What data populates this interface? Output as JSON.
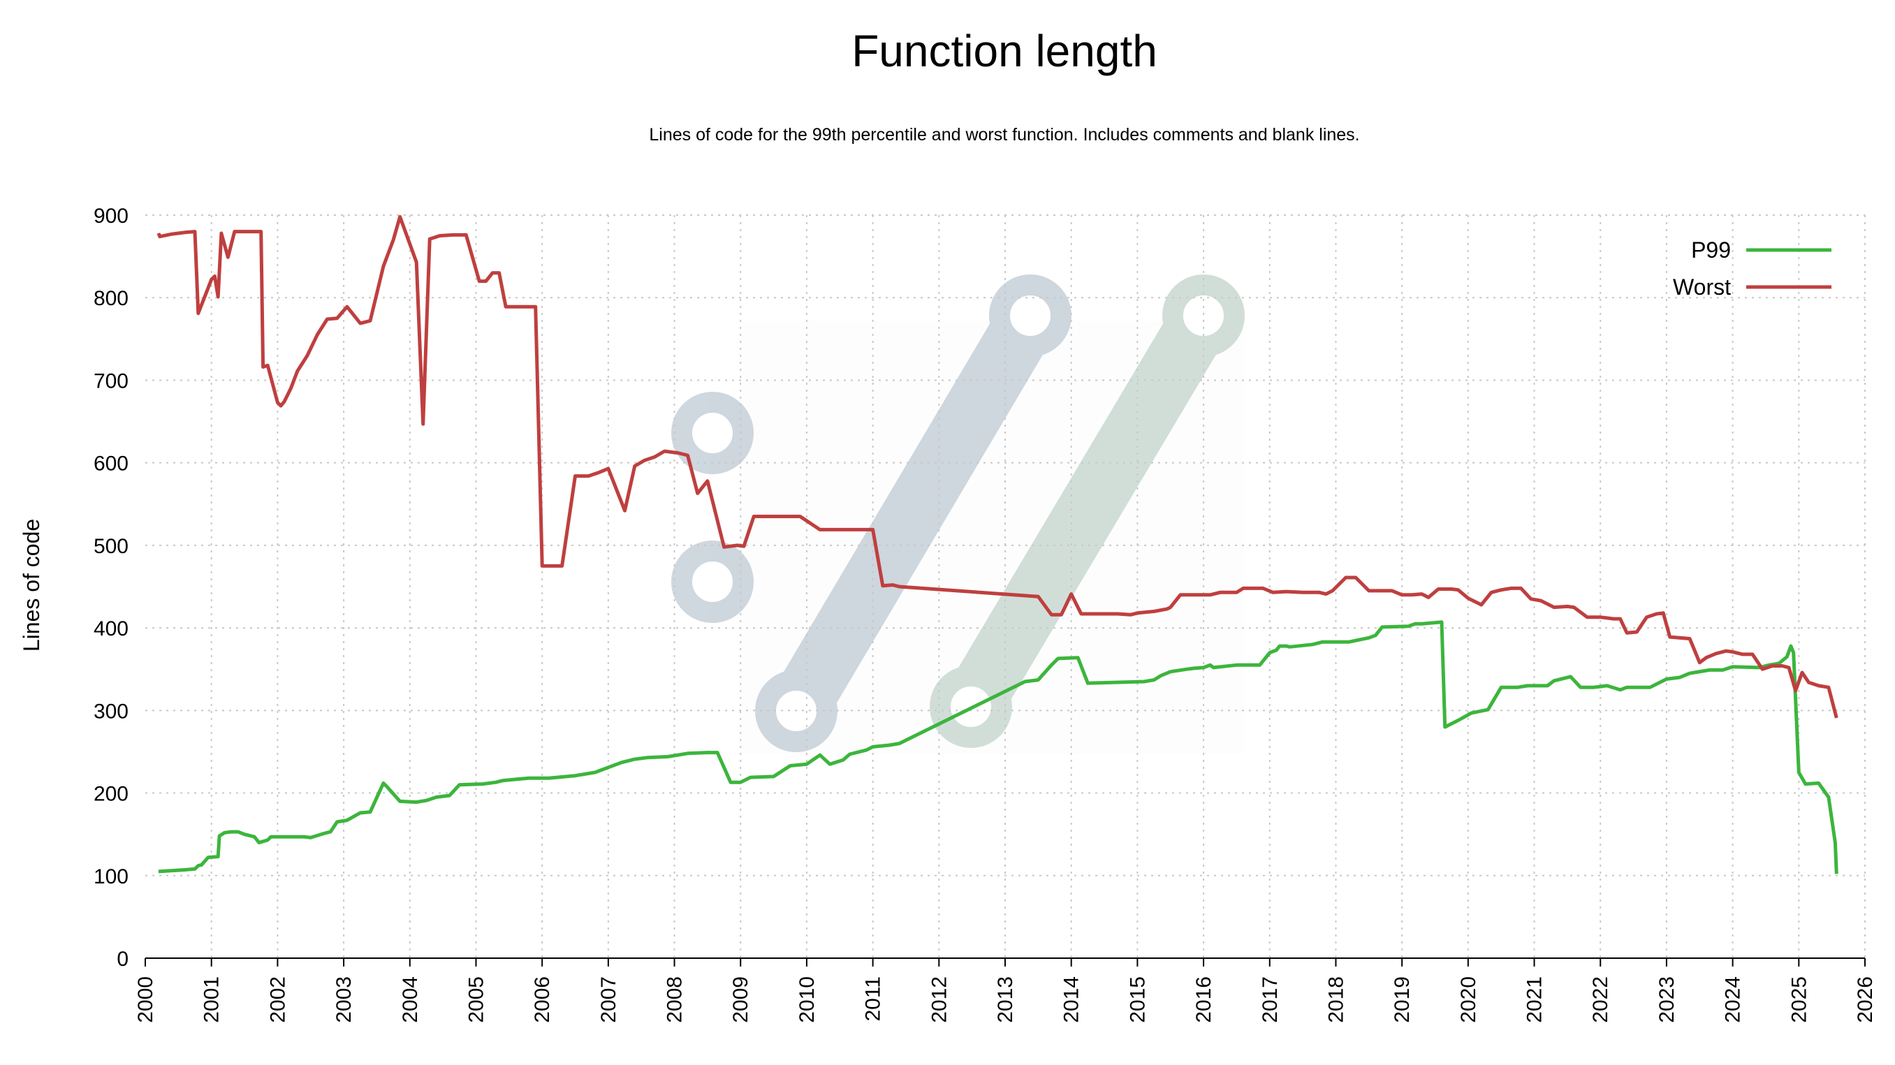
{
  "chart_data": {
    "type": "line",
    "title": "Function length",
    "subtitle": "Lines of code for the 99th percentile and worst function. Includes comments and blank lines.",
    "xlabel": "",
    "ylabel": "Lines of code",
    "xlim": [
      2000,
      2026
    ],
    "ylim": [
      0,
      900
    ],
    "xticks": [
      "2000",
      "2001",
      "2002",
      "2003",
      "2004",
      "2005",
      "2006",
      "2007",
      "2008",
      "2009",
      "2010",
      "2011",
      "2012",
      "2013",
      "2014",
      "2015",
      "2016",
      "2017",
      "2018",
      "2019",
      "2020",
      "2021",
      "2022",
      "2023",
      "2024",
      "2025",
      "2026"
    ],
    "yticks": [
      "0",
      "100",
      "200",
      "300",
      "400",
      "500",
      "600",
      "700",
      "800",
      "900"
    ],
    "grid": true,
    "legend_position": "top-right",
    "series": [
      {
        "name": "P99",
        "color": "#3cb53c",
        "points": [
          [
            2000.2,
            105
          ],
          [
            2000.6,
            107
          ],
          [
            2000.75,
            108
          ],
          [
            2000.8,
            112
          ],
          [
            2000.85,
            113
          ],
          [
            2000.95,
            122
          ],
          [
            2001.1,
            123
          ],
          [
            2001.12,
            148
          ],
          [
            2001.2,
            152
          ],
          [
            2001.3,
            153
          ],
          [
            2001.4,
            153
          ],
          [
            2001.5,
            150
          ],
          [
            2001.65,
            147
          ],
          [
            2001.72,
            140
          ],
          [
            2001.85,
            143
          ],
          [
            2001.9,
            147
          ],
          [
            2002.2,
            147
          ],
          [
            2002.4,
            147
          ],
          [
            2002.5,
            146
          ],
          [
            2002.7,
            151
          ],
          [
            2002.8,
            153
          ],
          [
            2002.9,
            165
          ],
          [
            2003.05,
            167
          ],
          [
            2003.25,
            176
          ],
          [
            2003.4,
            177
          ],
          [
            2003.6,
            212
          ],
          [
            2003.65,
            208
          ],
          [
            2003.85,
            190
          ],
          [
            2004.1,
            189
          ],
          [
            2004.25,
            191
          ],
          [
            2004.4,
            195
          ],
          [
            2004.6,
            197
          ],
          [
            2004.75,
            210
          ],
          [
            2005.1,
            211
          ],
          [
            2005.3,
            213
          ],
          [
            2005.4,
            215
          ],
          [
            2005.65,
            217
          ],
          [
            2005.8,
            218
          ],
          [
            2006.1,
            218
          ],
          [
            2006.5,
            221
          ],
          [
            2006.8,
            225
          ],
          [
            2007.2,
            237
          ],
          [
            2007.4,
            241
          ],
          [
            2007.6,
            243
          ],
          [
            2007.9,
            244
          ],
          [
            2008.2,
            248
          ],
          [
            2008.5,
            249
          ],
          [
            2008.65,
            249
          ],
          [
            2008.85,
            213
          ],
          [
            2009.0,
            213
          ],
          [
            2009.15,
            219
          ],
          [
            2009.5,
            220
          ],
          [
            2009.75,
            233
          ],
          [
            2010.0,
            235
          ],
          [
            2010.2,
            246
          ],
          [
            2010.35,
            235
          ],
          [
            2010.55,
            240
          ],
          [
            2010.65,
            247
          ],
          [
            2010.9,
            252
          ],
          [
            2011.0,
            256
          ],
          [
            2011.25,
            258
          ],
          [
            2011.4,
            260
          ],
          [
            2013.3,
            335
          ],
          [
            2013.5,
            337
          ],
          [
            2013.7,
            355
          ],
          [
            2013.8,
            363
          ],
          [
            2014.1,
            364
          ],
          [
            2014.25,
            333
          ],
          [
            2015.1,
            335
          ],
          [
            2015.25,
            337
          ],
          [
            2015.35,
            342
          ],
          [
            2015.5,
            347
          ],
          [
            2015.75,
            350
          ],
          [
            2015.85,
            351
          ],
          [
            2016.0,
            352
          ],
          [
            2016.1,
            355
          ],
          [
            2016.15,
            352
          ],
          [
            2016.5,
            355
          ],
          [
            2016.85,
            355
          ],
          [
            2017.0,
            370
          ],
          [
            2017.1,
            373
          ],
          [
            2017.15,
            378
          ],
          [
            2017.25,
            378
          ],
          [
            2017.3,
            377
          ],
          [
            2017.65,
            380
          ],
          [
            2017.8,
            383
          ],
          [
            2018.2,
            383
          ],
          [
            2018.5,
            388
          ],
          [
            2018.6,
            391
          ],
          [
            2018.7,
            401
          ],
          [
            2019.1,
            402
          ],
          [
            2019.2,
            405
          ],
          [
            2019.3,
            405
          ],
          [
            2019.6,
            407
          ],
          [
            2019.65,
            280
          ],
          [
            2019.85,
            288
          ],
          [
            2020.05,
            297
          ],
          [
            2020.3,
            301
          ],
          [
            2020.5,
            328
          ],
          [
            2020.75,
            328
          ],
          [
            2020.9,
            330
          ],
          [
            2021.2,
            330
          ],
          [
            2021.3,
            336
          ],
          [
            2021.55,
            341
          ],
          [
            2021.7,
            328
          ],
          [
            2021.9,
            328
          ],
          [
            2022.1,
            330
          ],
          [
            2022.3,
            325
          ],
          [
            2022.4,
            328
          ],
          [
            2022.75,
            328
          ],
          [
            2023.0,
            338
          ],
          [
            2023.2,
            340
          ],
          [
            2023.35,
            345
          ],
          [
            2023.65,
            349
          ],
          [
            2023.85,
            349
          ],
          [
            2024.0,
            353
          ],
          [
            2024.4,
            352
          ],
          [
            2024.55,
            355
          ],
          [
            2024.7,
            357
          ],
          [
            2024.82,
            365
          ],
          [
            2024.88,
            378
          ],
          [
            2024.92,
            370
          ],
          [
            2025.0,
            225
          ],
          [
            2025.1,
            211
          ],
          [
            2025.3,
            212
          ],
          [
            2025.45,
            195
          ],
          [
            2025.55,
            140
          ],
          [
            2025.57,
            102
          ]
        ]
      },
      {
        "name": "Worst",
        "color": "#bf3f3f",
        "points": [
          [
            2000.2,
            878
          ],
          [
            2000.22,
            874
          ],
          [
            2000.4,
            877
          ],
          [
            2000.6,
            879
          ],
          [
            2000.75,
            880
          ],
          [
            2000.8,
            781
          ],
          [
            2001.0,
            822
          ],
          [
            2001.05,
            826
          ],
          [
            2001.1,
            801
          ],
          [
            2001.15,
            878
          ],
          [
            2001.25,
            849
          ],
          [
            2001.35,
            880
          ],
          [
            2001.5,
            880
          ],
          [
            2001.75,
            880
          ],
          [
            2001.78,
            716
          ],
          [
            2001.85,
            718
          ],
          [
            2002.0,
            673
          ],
          [
            2002.05,
            669
          ],
          [
            2002.1,
            674
          ],
          [
            2002.2,
            690
          ],
          [
            2002.3,
            711
          ],
          [
            2002.45,
            730
          ],
          [
            2002.6,
            755
          ],
          [
            2002.75,
            774
          ],
          [
            2002.9,
            775
          ],
          [
            2003.05,
            789
          ],
          [
            2003.25,
            769
          ],
          [
            2003.4,
            772
          ],
          [
            2003.6,
            838
          ],
          [
            2003.75,
            870
          ],
          [
            2003.85,
            898
          ],
          [
            2004.1,
            843
          ],
          [
            2004.2,
            647
          ],
          [
            2004.3,
            871
          ],
          [
            2004.45,
            875
          ],
          [
            2004.65,
            876
          ],
          [
            2004.85,
            876
          ],
          [
            2005.05,
            820
          ],
          [
            2005.15,
            820
          ],
          [
            2005.25,
            830
          ],
          [
            2005.35,
            830
          ],
          [
            2005.45,
            789
          ],
          [
            2005.65,
            789
          ],
          [
            2005.9,
            789
          ],
          [
            2006.0,
            475
          ],
          [
            2006.3,
            475
          ],
          [
            2006.5,
            584
          ],
          [
            2006.7,
            584
          ],
          [
            2006.85,
            588
          ],
          [
            2007.0,
            593
          ],
          [
            2007.25,
            542
          ],
          [
            2007.4,
            596
          ],
          [
            2007.55,
            603
          ],
          [
            2007.7,
            607
          ],
          [
            2007.85,
            614
          ],
          [
            2008.05,
            612
          ],
          [
            2008.2,
            609
          ],
          [
            2008.35,
            563
          ],
          [
            2008.5,
            578
          ],
          [
            2008.75,
            498
          ],
          [
            2008.95,
            500
          ],
          [
            2009.05,
            499
          ],
          [
            2009.2,
            535
          ],
          [
            2009.5,
            535
          ],
          [
            2009.9,
            535
          ],
          [
            2010.2,
            519
          ],
          [
            2010.6,
            519
          ],
          [
            2011.0,
            519
          ],
          [
            2011.15,
            451
          ],
          [
            2011.3,
            452
          ],
          [
            2011.4,
            450
          ],
          [
            2013.5,
            438
          ],
          [
            2013.7,
            416
          ],
          [
            2013.85,
            416
          ],
          [
            2014.0,
            441
          ],
          [
            2014.15,
            417
          ],
          [
            2014.4,
            417
          ],
          [
            2014.7,
            417
          ],
          [
            2014.9,
            416
          ],
          [
            2015.0,
            418
          ],
          [
            2015.25,
            420
          ],
          [
            2015.45,
            423
          ],
          [
            2015.5,
            425
          ],
          [
            2015.65,
            440
          ],
          [
            2015.9,
            440
          ],
          [
            2016.1,
            440
          ],
          [
            2016.25,
            443
          ],
          [
            2016.5,
            443
          ],
          [
            2016.6,
            448
          ],
          [
            2016.75,
            448
          ],
          [
            2016.9,
            448
          ],
          [
            2017.05,
            443
          ],
          [
            2017.25,
            444
          ],
          [
            2017.5,
            443
          ],
          [
            2017.75,
            443
          ],
          [
            2017.85,
            441
          ],
          [
            2017.95,
            445
          ],
          [
            2018.15,
            461
          ],
          [
            2018.3,
            461
          ],
          [
            2018.5,
            445
          ],
          [
            2018.65,
            445
          ],
          [
            2018.85,
            445
          ],
          [
            2019.0,
            440
          ],
          [
            2019.15,
            440
          ],
          [
            2019.3,
            441
          ],
          [
            2019.4,
            437
          ],
          [
            2019.55,
            447
          ],
          [
            2019.75,
            447
          ],
          [
            2019.85,
            446
          ],
          [
            2020.0,
            436
          ],
          [
            2020.2,
            428
          ],
          [
            2020.35,
            443
          ],
          [
            2020.5,
            446
          ],
          [
            2020.65,
            448
          ],
          [
            2020.8,
            448
          ],
          [
            2020.95,
            435
          ],
          [
            2021.1,
            433
          ],
          [
            2021.3,
            425
          ],
          [
            2021.5,
            426
          ],
          [
            2021.6,
            425
          ],
          [
            2021.8,
            413
          ],
          [
            2022.0,
            413
          ],
          [
            2022.2,
            411
          ],
          [
            2022.3,
            411
          ],
          [
            2022.4,
            394
          ],
          [
            2022.55,
            395
          ],
          [
            2022.7,
            413
          ],
          [
            2022.85,
            417
          ],
          [
            2022.95,
            418
          ],
          [
            2023.05,
            389
          ],
          [
            2023.35,
            387
          ],
          [
            2023.5,
            358
          ],
          [
            2023.6,
            364
          ],
          [
            2023.75,
            369
          ],
          [
            2023.9,
            372
          ],
          [
            2024.0,
            371
          ],
          [
            2024.15,
            368
          ],
          [
            2024.3,
            368
          ],
          [
            2024.45,
            350
          ],
          [
            2024.6,
            354
          ],
          [
            2024.75,
            354
          ],
          [
            2024.85,
            352
          ],
          [
            2024.95,
            324
          ],
          [
            2025.05,
            346
          ],
          [
            2025.15,
            334
          ],
          [
            2025.3,
            330
          ],
          [
            2025.45,
            328
          ],
          [
            2025.57,
            291
          ]
        ]
      }
    ]
  },
  "watermark": {
    "type": "merge-logo",
    "colors": [
      "#94a6b8",
      "#9bb8aa"
    ]
  }
}
